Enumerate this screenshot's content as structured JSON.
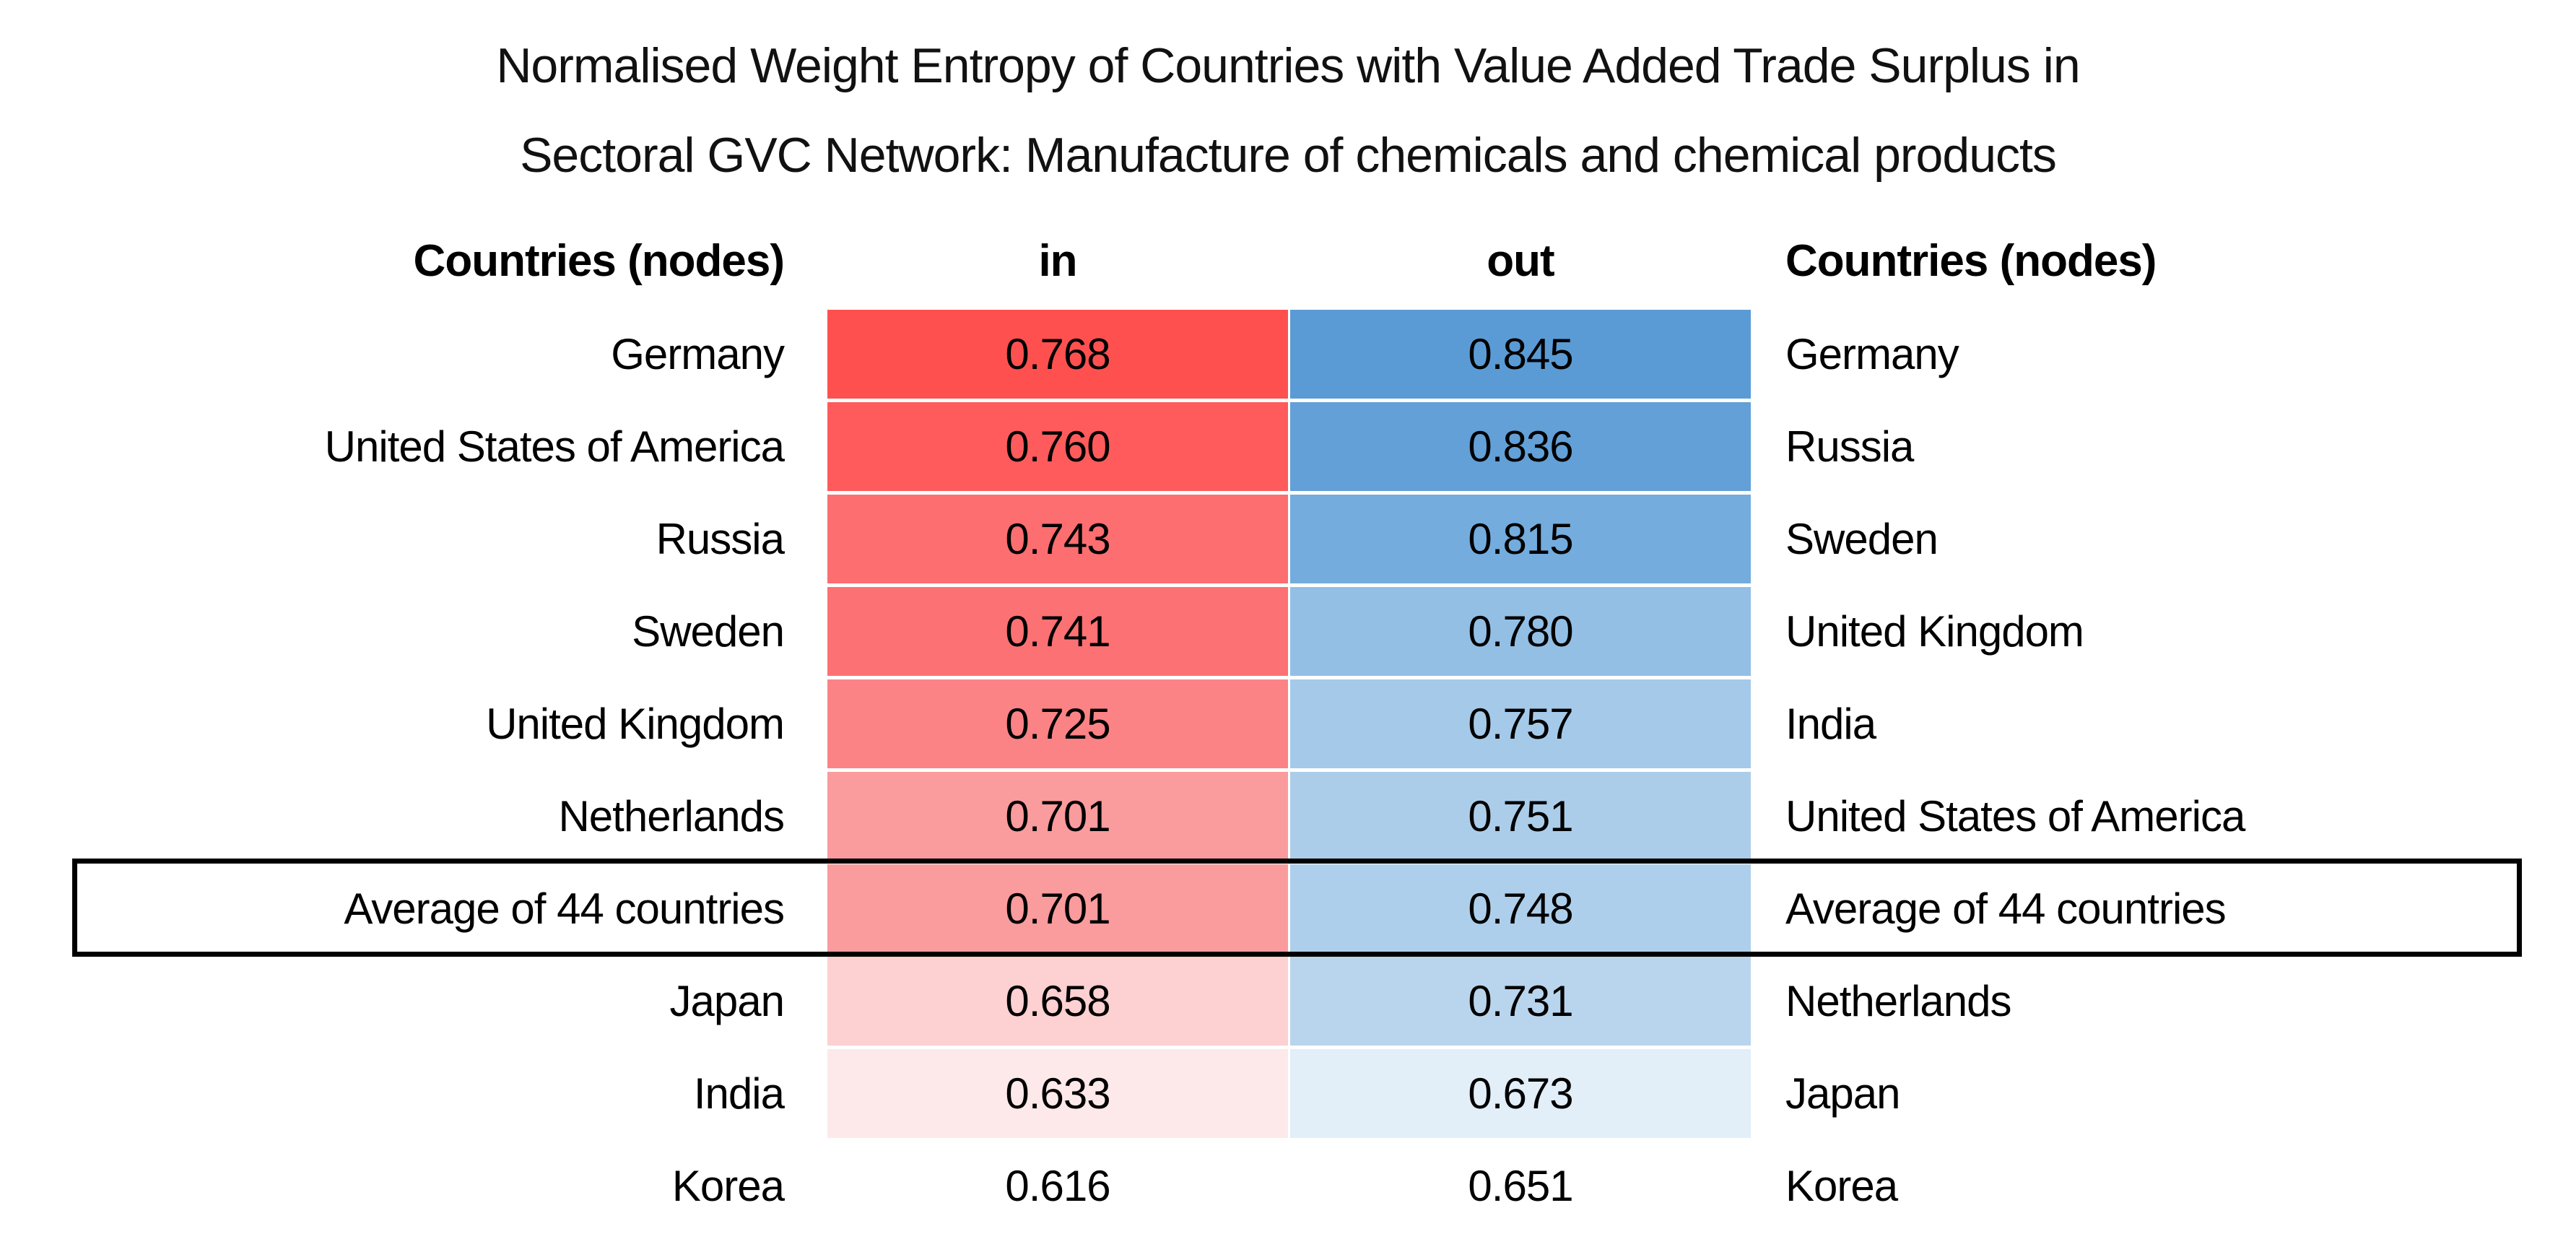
{
  "title": {
    "line1": "Normalised Weight Entropy of Countries with Value Added Trade Surplus in",
    "line2": "Sectoral GVC Network: Manufacture of chemicals and chemical products"
  },
  "table": {
    "header": {
      "left_countries": "Countries (nodes)",
      "in": "in",
      "out": "out",
      "right_countries": "Countries (nodes)"
    },
    "rows": [
      {
        "left": "Germany",
        "in_value": "0.768",
        "in_bg": "#FF5050",
        "out_value": "0.845",
        "out_bg": "#5B9BD5",
        "right": "Germany",
        "highlight": false
      },
      {
        "left": "United States of America",
        "in_value": "0.760",
        "in_bg": "#FF5B5C",
        "out_value": "0.836",
        "out_bg": "#62A0D7",
        "right": "Russia",
        "highlight": false
      },
      {
        "left": "Russia",
        "in_value": "0.743",
        "in_bg": "#FC6E70",
        "out_value": "0.815",
        "out_bg": "#74ACDD",
        "right": "Sweden",
        "highlight": false
      },
      {
        "left": "Sweden",
        "in_value": "0.741",
        "in_bg": "#FC7173",
        "out_value": "0.780",
        "out_bg": "#93BFE5",
        "right": "United Kingdom",
        "highlight": false
      },
      {
        "left": "United Kingdom",
        "in_value": "0.725",
        "in_bg": "#FB8385",
        "out_value": "0.757",
        "out_bg": "#A5C9E9",
        "right": "India",
        "highlight": false
      },
      {
        "left": "Netherlands",
        "in_value": "0.701",
        "in_bg": "#FA9B9D",
        "out_value": "0.751",
        "out_bg": "#ABCDEA",
        "right": "United States of America",
        "highlight": false
      },
      {
        "left": "Average of 44 countries",
        "in_value": "0.701",
        "in_bg": "#FA9B9D",
        "out_value": "0.748",
        "out_bg": "#AECFEB",
        "right": "Average of 44 countries",
        "highlight": true
      },
      {
        "left": "Japan",
        "in_value": "0.658",
        "in_bg": "#FDD0D1",
        "out_value": "0.731",
        "out_bg": "#B9D5ED",
        "right": "Netherlands",
        "highlight": false
      },
      {
        "left": "India",
        "in_value": "0.633",
        "in_bg": "#FEE9EA",
        "out_value": "0.673",
        "out_bg": "#E2EEF8",
        "right": "Japan",
        "highlight": false
      },
      {
        "left": "Korea",
        "in_value": "0.616",
        "in_bg": "transparent",
        "out_value": "0.651",
        "out_bg": "transparent",
        "right": "Korea",
        "highlight": false
      }
    ]
  },
  "colors": {
    "in_scale_max": "#FF5050",
    "in_scale_min": "#FFFFFF",
    "out_scale_max": "#5B9BD5",
    "out_scale_min": "#FFFFFF",
    "highlight_border": "#000000",
    "text": "#000000"
  },
  "chart_data": {
    "type": "table",
    "title": "Normalised Weight Entropy of Countries with Value Added Trade Surplus in Sectoral GVC Network: Manufacture of chemicals and chemical products",
    "columns": [
      "Countries (nodes)",
      "in",
      "out",
      "Countries (nodes)"
    ],
    "heatmap": {
      "in_column": "white-to-red scale",
      "out_column": "white-to-blue scale"
    },
    "in_ranking": [
      {
        "country": "Germany",
        "value": 0.768
      },
      {
        "country": "United States of America",
        "value": 0.76
      },
      {
        "country": "Russia",
        "value": 0.743
      },
      {
        "country": "Sweden",
        "value": 0.741
      },
      {
        "country": "United Kingdom",
        "value": 0.725
      },
      {
        "country": "Netherlands",
        "value": 0.701
      },
      {
        "country": "Average of 44 countries",
        "value": 0.701
      },
      {
        "country": "Japan",
        "value": 0.658
      },
      {
        "country": "India",
        "value": 0.633
      },
      {
        "country": "Korea",
        "value": 0.616
      }
    ],
    "out_ranking": [
      {
        "country": "Germany",
        "value": 0.845
      },
      {
        "country": "Russia",
        "value": 0.836
      },
      {
        "country": "Sweden",
        "value": 0.815
      },
      {
        "country": "United Kingdom",
        "value": 0.78
      },
      {
        "country": "India",
        "value": 0.757
      },
      {
        "country": "United States of America",
        "value": 0.751
      },
      {
        "country": "Average of 44 countries",
        "value": 0.748
      },
      {
        "country": "Netherlands",
        "value": 0.731
      },
      {
        "country": "Japan",
        "value": 0.673
      },
      {
        "country": "Korea",
        "value": 0.651
      }
    ],
    "annotations": [
      "Average of 44 countries row is outlined with a black border"
    ]
  }
}
